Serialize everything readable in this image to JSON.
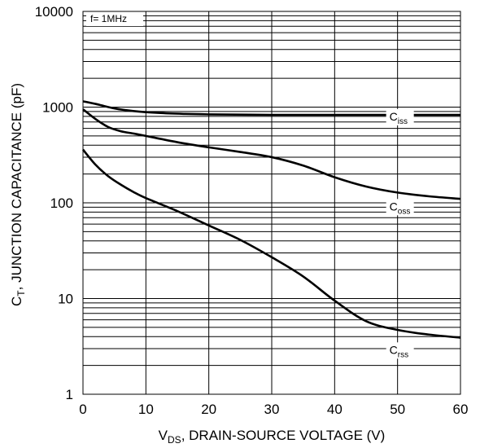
{
  "chart_data": {
    "type": "line",
    "xlabel": {
      "main": "V",
      "sub": "DS",
      "rest": ", DRAIN-SOURCE VOLTAGE (V)"
    },
    "ylabel": {
      "main": "C",
      "sub": "T",
      "rest": ", JUNCTION CAPACITANCE (pF)"
    },
    "annotation": "f= 1MHz",
    "xlim": [
      0,
      60
    ],
    "ylim": [
      1,
      10000
    ],
    "yscale": "log",
    "grid": true,
    "x_ticks": [
      "0",
      "10",
      "20",
      "30",
      "40",
      "50",
      "60"
    ],
    "y_ticks": [
      "1",
      "10",
      "100",
      "1000",
      "10000"
    ],
    "series": [
      {
        "label": {
          "main": "C",
          "sub": "iss"
        },
        "label_pos": {
          "x": 50,
          "y": 740
        },
        "x": [
          0,
          2,
          5,
          8,
          12,
          16,
          20,
          30,
          40,
          50,
          60
        ],
        "y": [
          1150,
          1080,
          970,
          910,
          870,
          850,
          840,
          830,
          830,
          830,
          830
        ]
      },
      {
        "label": {
          "main": "C",
          "sub": "oss"
        },
        "label_pos": {
          "x": 50,
          "y": 85
        },
        "x": [
          0,
          2,
          4,
          6,
          8,
          10,
          15,
          20,
          25,
          30,
          35,
          40,
          45,
          50,
          55,
          60
        ],
        "y": [
          950,
          750,
          620,
          560,
          530,
          500,
          430,
          380,
          340,
          300,
          245,
          185,
          148,
          128,
          117,
          110
        ]
      },
      {
        "label": {
          "main": "C",
          "sub": "rss"
        },
        "label_pos": {
          "x": 50,
          "y": 2.7
        },
        "x": [
          0,
          2,
          4,
          6,
          8,
          10,
          15,
          20,
          25,
          30,
          35,
          40,
          45,
          50,
          55,
          60
        ],
        "y": [
          360,
          250,
          190,
          155,
          130,
          112,
          82,
          58,
          41,
          27,
          17,
          9.5,
          5.8,
          4.7,
          4.2,
          3.9
        ]
      }
    ]
  }
}
